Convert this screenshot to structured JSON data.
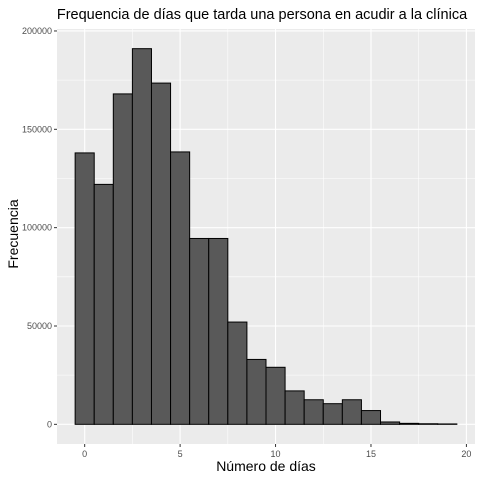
{
  "chart_data": {
    "type": "bar",
    "title": "Frequencia de días que tarda una persona en acudir a la clínica",
    "xlabel": "Número de días",
    "ylabel": "Frecuencia",
    "xlim": [
      -1.45,
      20.45
    ],
    "ylim": [
      -10000,
      201000
    ],
    "xticks": [
      0,
      5,
      10,
      15,
      20
    ],
    "yticks": [
      0,
      50000,
      100000,
      150000,
      200000
    ],
    "ytick_labels": [
      "0",
      "50000",
      "100000",
      "150000",
      "200000"
    ],
    "bin_width": 1,
    "bins": [
      {
        "start": -0.5,
        "end": 0.5,
        "count": 138000
      },
      {
        "start": 0.5,
        "end": 1.5,
        "count": 122000
      },
      {
        "start": 1.5,
        "end": 2.5,
        "count": 168000
      },
      {
        "start": 2.5,
        "end": 3.5,
        "count": 191000
      },
      {
        "start": 3.5,
        "end": 4.5,
        "count": 173500
      },
      {
        "start": 4.5,
        "end": 5.5,
        "count": 138500
      },
      {
        "start": 5.5,
        "end": 6.5,
        "count": 94500
      },
      {
        "start": 6.5,
        "end": 7.5,
        "count": 94500
      },
      {
        "start": 7.5,
        "end": 8.5,
        "count": 52000
      },
      {
        "start": 8.5,
        "end": 9.5,
        "count": 33000
      },
      {
        "start": 9.5,
        "end": 10.5,
        "count": 29000
      },
      {
        "start": 10.5,
        "end": 11.5,
        "count": 17000
      },
      {
        "start": 11.5,
        "end": 12.5,
        "count": 12500
      },
      {
        "start": 12.5,
        "end": 13.5,
        "count": 10500
      },
      {
        "start": 13.5,
        "end": 14.5,
        "count": 12500
      },
      {
        "start": 14.5,
        "end": 15.5,
        "count": 7000
      },
      {
        "start": 15.5,
        "end": 16.5,
        "count": 1200
      },
      {
        "start": 16.5,
        "end": 17.5,
        "count": 500
      },
      {
        "start": 17.5,
        "end": 18.5,
        "count": 300
      },
      {
        "start": 18.5,
        "end": 19.5,
        "count": 200
      }
    ],
    "grid": true,
    "legend": "none",
    "colors": {
      "panel_background": "#ebebeb",
      "grid_major": "#ffffff",
      "bar_fill": "#595959",
      "bar_outline": "#000000",
      "tick_text": "#4d4d4d",
      "tick_mark": "#333333"
    }
  }
}
